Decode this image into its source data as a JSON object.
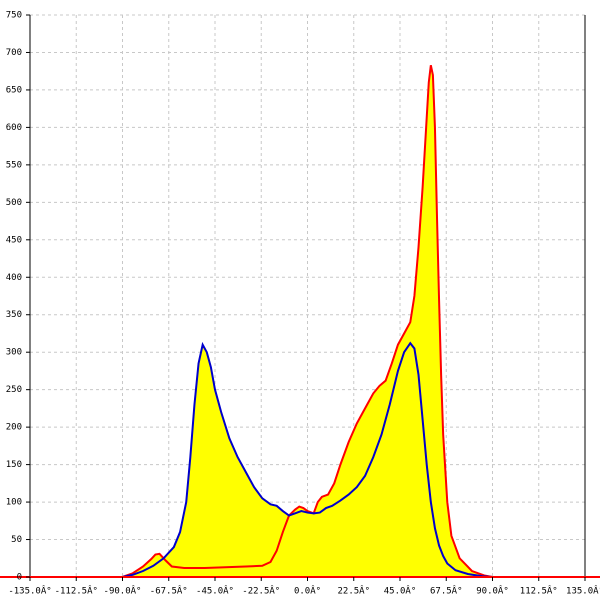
{
  "chart_data": {
    "type": "area",
    "fill": "#ffff00",
    "axis_color": "#ff0000",
    "grid": true,
    "xlim": [
      -135,
      135
    ],
    "ylim": [
      0,
      750
    ],
    "xticks": [
      {
        "value": -135,
        "label": "-135.0Â°"
      },
      {
        "value": -112.5,
        "label": "-112.5Â°"
      },
      {
        "value": -90,
        "label": "-90.0Â°"
      },
      {
        "value": -67.5,
        "label": "-67.5Â°"
      },
      {
        "value": -45,
        "label": "-45.0Â°"
      },
      {
        "value": -22.5,
        "label": "-22.5Â°"
      },
      {
        "value": 0,
        "label": "0.0Â°"
      },
      {
        "value": 22.5,
        "label": "22.5Â°"
      },
      {
        "value": 45,
        "label": "45.0Â°"
      },
      {
        "value": 67.5,
        "label": "67.5Â°"
      },
      {
        "value": 90,
        "label": "90.0Â°"
      },
      {
        "value": 112.5,
        "label": "112.5Â°"
      },
      {
        "value": 135,
        "label": "135.0Â°"
      }
    ],
    "yticks": [
      0,
      50,
      100,
      150,
      200,
      250,
      300,
      350,
      400,
      450,
      500,
      550,
      600,
      650,
      700,
      750
    ],
    "series": [
      {
        "color": "#ff0000",
        "x": [
          -90,
          -85,
          -80,
          -76,
          -74,
          -72,
          -69,
          -66,
          -60,
          -50,
          -40,
          -30,
          -22,
          -18,
          -15,
          -12,
          -9,
          -6,
          -4,
          -2,
          0,
          3,
          5,
          7,
          10,
          13,
          16,
          20,
          24,
          28,
          32,
          35,
          38,
          41,
          44,
          47,
          50,
          52,
          54,
          56,
          57.5,
          59,
          60,
          61,
          62,
          63,
          64,
          65,
          66,
          68,
          70,
          74,
          80,
          86,
          90
        ],
        "values": [
          0,
          5,
          14,
          24,
          30,
          31,
          22,
          14,
          12,
          12,
          13,
          14,
          15,
          20,
          35,
          60,
          82,
          90,
          94,
          92,
          88,
          85,
          100,
          107,
          110,
          125,
          150,
          180,
          205,
          225,
          245,
          255,
          262,
          285,
          310,
          325,
          340,
          375,
          440,
          520,
          590,
          660,
          683,
          670,
          600,
          480,
          370,
          270,
          190,
          100,
          55,
          25,
          8,
          2,
          0
        ]
      },
      {
        "color": "#0000cc",
        "x": [
          -90,
          -85,
          -80,
          -75,
          -70,
          -65,
          -62,
          -59,
          -57,
          -55,
          -53,
          -51,
          -49,
          -47,
          -45,
          -42,
          -38,
          -34,
          -30,
          -26,
          -22,
          -18,
          -15,
          -12,
          -9,
          -6,
          -3,
          0,
          3,
          6,
          9,
          12,
          16,
          20,
          24,
          28,
          32,
          36,
          40,
          44,
          47,
          50,
          52,
          54,
          56,
          58,
          60,
          62,
          64,
          66,
          68,
          72,
          78,
          85,
          90
        ],
        "values": [
          0,
          3,
          8,
          15,
          25,
          40,
          60,
          100,
          160,
          230,
          285,
          310,
          300,
          280,
          250,
          220,
          185,
          160,
          140,
          120,
          105,
          97,
          95,
          88,
          82,
          85,
          88,
          86,
          85,
          86,
          92,
          95,
          102,
          110,
          120,
          135,
          160,
          190,
          230,
          275,
          300,
          312,
          305,
          270,
          210,
          150,
          100,
          65,
          42,
          28,
          18,
          9,
          4,
          1,
          0
        ]
      }
    ]
  }
}
